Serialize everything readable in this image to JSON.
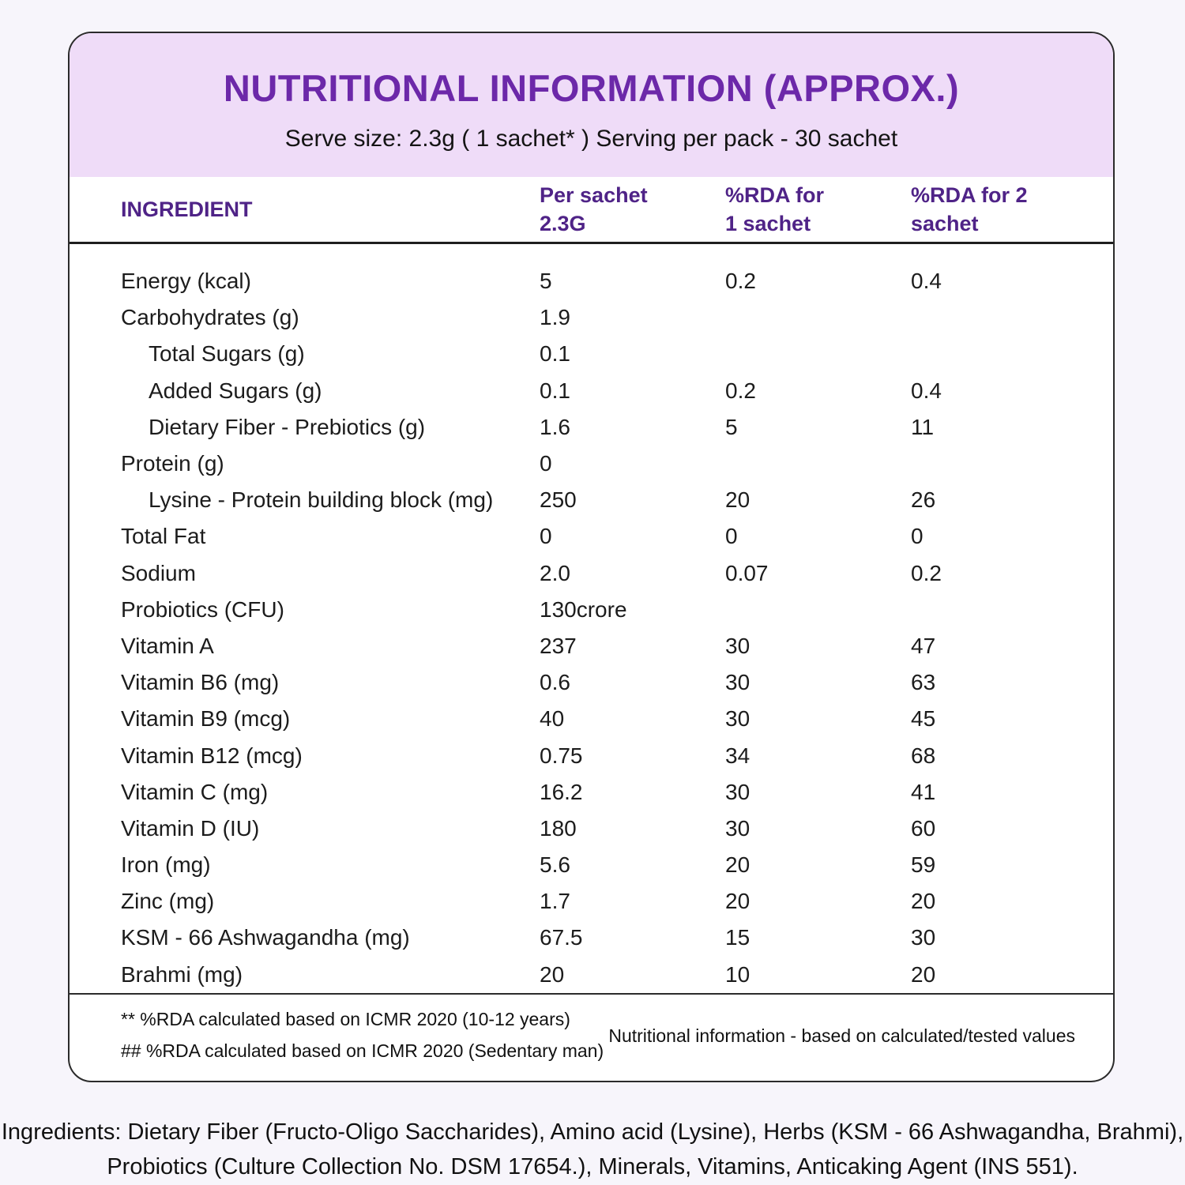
{
  "header": {
    "title": "NUTRITIONAL INFORMATION (APPROX.)",
    "serving_info": "Serve size: 2.3g ( 1 sachet* ) Serving per pack - 30 sachet"
  },
  "colors": {
    "accent_purple": "#6c28a9",
    "column_header_purple": "#4f2387",
    "band_background": "#efdcf8",
    "page_background": "#f7f5fb"
  },
  "table": {
    "columns": {
      "ingredient": "INGREDIENT",
      "per_sachet": "Per sachet\n2.3G",
      "rda_1": "%RDA for\n1 sachet",
      "rda_2": "%RDA for 2\nsachet"
    },
    "rows": [
      {
        "ingredient": "Energy (kcal)",
        "per_sachet": "5",
        "rda_1": "0.2",
        "rda_2": "0.4",
        "indent": false
      },
      {
        "ingredient": "Carbohydrates (g)",
        "per_sachet": "1.9",
        "rda_1": "",
        "rda_2": "",
        "indent": false
      },
      {
        "ingredient": "Total Sugars (g)",
        "per_sachet": "0.1",
        "rda_1": "",
        "rda_2": "",
        "indent": true
      },
      {
        "ingredient": "Added Sugars (g)",
        "per_sachet": "0.1",
        "rda_1": "0.2",
        "rda_2": "0.4",
        "indent": true
      },
      {
        "ingredient": "Dietary Fiber - Prebiotics (g)",
        "per_sachet": "1.6",
        "rda_1": "5",
        "rda_2": "11",
        "indent": true
      },
      {
        "ingredient": "Protein (g)",
        "per_sachet": "0",
        "rda_1": "",
        "rda_2": "",
        "indent": false
      },
      {
        "ingredient": "Lysine - Protein building block (mg)",
        "per_sachet": "250",
        "rda_1": "20",
        "rda_2": "26",
        "indent": true
      },
      {
        "ingredient": "Total Fat",
        "per_sachet": "0",
        "rda_1": "0",
        "rda_2": "0",
        "indent": false
      },
      {
        "ingredient": "Sodium",
        "per_sachet": "2.0",
        "rda_1": "0.07",
        "rda_2": "0.2",
        "indent": false
      },
      {
        "ingredient": "Probiotics (CFU)",
        "per_sachet": "130crore",
        "rda_1": "",
        "rda_2": "",
        "indent": false
      },
      {
        "ingredient": "Vitamin A",
        "per_sachet": "237",
        "rda_1": "30",
        "rda_2": "47",
        "indent": false
      },
      {
        "ingredient": "Vitamin B6 (mg)",
        "per_sachet": "0.6",
        "rda_1": "30",
        "rda_2": "63",
        "indent": false
      },
      {
        "ingredient": "Vitamin B9 (mcg)",
        "per_sachet": "40",
        "rda_1": "30",
        "rda_2": "45",
        "indent": false
      },
      {
        "ingredient": "Vitamin B12 (mcg)",
        "per_sachet": "0.75",
        "rda_1": "34",
        "rda_2": "68",
        "indent": false
      },
      {
        "ingredient": "Vitamin C (mg)",
        "per_sachet": "16.2",
        "rda_1": "30",
        "rda_2": "41",
        "indent": false
      },
      {
        "ingredient": "Vitamin D (IU)",
        "per_sachet": "180",
        "rda_1": "30",
        "rda_2": "60",
        "indent": false
      },
      {
        "ingredient": "Iron (mg)",
        "per_sachet": "5.6",
        "rda_1": "20",
        "rda_2": "59",
        "indent": false
      },
      {
        "ingredient": "Zinc (mg)",
        "per_sachet": "1.7",
        "rda_1": "20",
        "rda_2": "20",
        "indent": false
      },
      {
        "ingredient": "KSM - 66 Ashwagandha (mg)",
        "per_sachet": "67.5",
        "rda_1": "15",
        "rda_2": "30",
        "indent": false
      },
      {
        "ingredient": "Brahmi (mg)",
        "per_sachet": "20",
        "rda_1": "10",
        "rda_2": "20",
        "indent": false
      }
    ]
  },
  "footnotes": {
    "note1": "** %RDA calculated based on ICMR 2020 (10-12 years)",
    "note2": "## %RDA calculated based on ICMR 2020 (Sedentary man)",
    "right_note": "Nutritional information - based on calculated/tested values"
  },
  "ingredients_note": {
    "line1": "Ingredients: Dietary Fiber (Fructo-Oligo Saccharides), Amino acid (Lysine), Herbs (KSM - 66 Ashwagandha, Brahmi),",
    "line2": "Probiotics (Culture Collection No. DSM 17654.), Minerals, Vitamins, Anticaking Agent (INS 551)."
  }
}
